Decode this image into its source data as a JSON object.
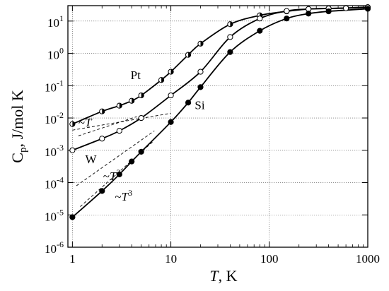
{
  "chart_data": {
    "type": "scatter",
    "xlabel": {
      "var": "T",
      "unit": ", K"
    },
    "ylabel": {
      "base": "C",
      "sub": "p",
      "rest": ", J/mol K"
    },
    "x_scale": "log",
    "y_scale": "log",
    "xlim": [
      0.9,
      1000
    ],
    "ylim": [
      1e-06,
      30
    ],
    "grid": true,
    "x_ticks": [
      {
        "value": 1,
        "label": "1"
      },
      {
        "value": 10,
        "label": "10"
      },
      {
        "value": 100,
        "label": "100"
      },
      {
        "value": 1000,
        "label": "1000"
      }
    ],
    "y_ticks": [
      {
        "value": 1e-06,
        "mant": "10",
        "exp": "-6"
      },
      {
        "value": 1e-05,
        "mant": "10",
        "exp": "-5"
      },
      {
        "value": 0.0001,
        "mant": "10",
        "exp": "-4"
      },
      {
        "value": 0.001,
        "mant": "10",
        "exp": "-3"
      },
      {
        "value": 0.01,
        "mant": "10",
        "exp": "-2"
      },
      {
        "value": 0.1,
        "mant": "10",
        "exp": "-1"
      },
      {
        "value": 1,
        "mant": "10",
        "exp": "0"
      },
      {
        "value": 10,
        "mant": "10",
        "exp": "1"
      }
    ],
    "series": [
      {
        "name": "Pt",
        "marker": "half",
        "label_at": {
          "x": 3.9,
          "y": 0.16
        },
        "points": [
          {
            "x": 1,
            "y": 0.0065
          },
          {
            "x": 2,
            "y": 0.016
          },
          {
            "x": 3,
            "y": 0.024
          },
          {
            "x": 4,
            "y": 0.034
          },
          {
            "x": 5,
            "y": 0.05
          },
          {
            "x": 8,
            "y": 0.15
          },
          {
            "x": 10,
            "y": 0.27
          },
          {
            "x": 15,
            "y": 0.9
          },
          {
            "x": 20,
            "y": 2.0
          },
          {
            "x": 40,
            "y": 8.0
          },
          {
            "x": 80,
            "y": 15.0
          },
          {
            "x": 150,
            "y": 20.0
          },
          {
            "x": 250,
            "y": 23.5
          },
          {
            "x": 400,
            "y": 24.5
          },
          {
            "x": 600,
            "y": 25.5
          },
          {
            "x": 1000,
            "y": 27.0
          }
        ]
      },
      {
        "name": "W",
        "marker": "open",
        "label_at": {
          "x": 1.35,
          "y": 0.0004
        },
        "points": [
          {
            "x": 1,
            "y": 0.001
          },
          {
            "x": 2,
            "y": 0.0023
          },
          {
            "x": 3,
            "y": 0.004
          },
          {
            "x": 5,
            "y": 0.01
          },
          {
            "x": 10,
            "y": 0.05
          },
          {
            "x": 20,
            "y": 0.27
          },
          {
            "x": 40,
            "y": 3.2
          },
          {
            "x": 80,
            "y": 12.0
          },
          {
            "x": 150,
            "y": 20.5
          },
          {
            "x": 250,
            "y": 23.5
          },
          {
            "x": 400,
            "y": 24.5
          },
          {
            "x": 600,
            "y": 25.0
          },
          {
            "x": 1000,
            "y": 26.5
          }
        ]
      },
      {
        "name": "Si",
        "marker": "filled",
        "label_at": {
          "x": 17.5,
          "y": 0.019
        },
        "points": [
          {
            "x": 1,
            "y": 8.5e-06
          },
          {
            "x": 2,
            "y": 5.5e-05
          },
          {
            "x": 3,
            "y": 0.00018
          },
          {
            "x": 4,
            "y": 0.00045
          },
          {
            "x": 5,
            "y": 0.0009
          },
          {
            "x": 10,
            "y": 0.0075
          },
          {
            "x": 15,
            "y": 0.03
          },
          {
            "x": 20,
            "y": 0.09
          },
          {
            "x": 40,
            "y": 1.1
          },
          {
            "x": 80,
            "y": 5.0
          },
          {
            "x": 150,
            "y": 12.0
          },
          {
            "x": 250,
            "y": 17.0
          },
          {
            "x": 400,
            "y": 20.0
          },
          {
            "x": 1000,
            "y": 24.0
          }
        ]
      }
    ],
    "guide_lines": [
      {
        "from": {
          "x": 1.0,
          "y": 0.0042
        },
        "to": {
          "x": 10,
          "y": 0.014
        }
      },
      {
        "from": {
          "x": 1.15,
          "y": 0.0028
        },
        "to": {
          "x": 4.5,
          "y": 0.011
        }
      },
      {
        "from": {
          "x": 1.1,
          "y": 8e-05
        },
        "to": {
          "x": 6.8,
          "y": 0.004
        }
      },
      {
        "from": {
          "x": 1.2,
          "y": 1.8e-05
        },
        "to": {
          "x": 6.5,
          "y": 0.0018
        }
      }
    ],
    "annotations": [
      {
        "var": "T",
        "exp": "",
        "x": 1.15,
        "y": 0.0055
      },
      {
        "var": "T",
        "exp": "3",
        "x": 2.05,
        "y": 0.00012
      },
      {
        "var": "T",
        "exp": "3",
        "x": 2.7,
        "y": 2.8e-05
      }
    ]
  }
}
